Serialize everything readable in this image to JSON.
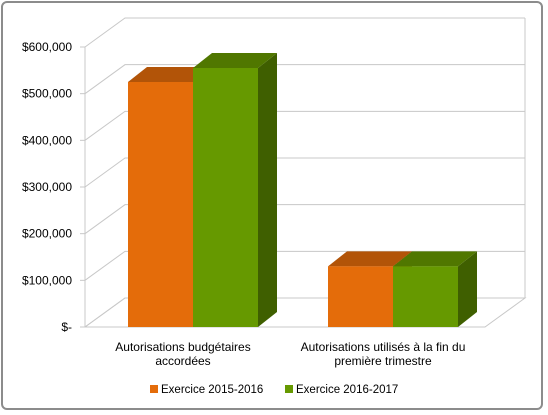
{
  "chart_data": {
    "type": "bar",
    "bar_style": "3d-clustered-column",
    "categories": [
      [
        "Autorisations budgétaires",
        "accordées"
      ],
      [
        "Autorisations utilisés à la fin du",
        "première trimestre"
      ]
    ],
    "series": [
      {
        "name": "Exercice 2015-2016",
        "values": [
          525000,
          130000
        ],
        "color": "#e46c0a"
      },
      {
        "name": "Exercice 2016-2017",
        "values": [
          555000,
          130000
        ],
        "color": "#669900"
      }
    ],
    "ylim": [
      0,
      600000
    ],
    "yticks": [
      0,
      100000,
      200000,
      300000,
      400000,
      500000,
      600000
    ],
    "ytick_labels": [
      "$-",
      "$100,000",
      "$200,000",
      "$300,000",
      "$400,000",
      "$500,000",
      "$600,000"
    ],
    "grid": true,
    "legend_position": "bottom",
    "title": "",
    "xlabel": "",
    "ylabel": ""
  }
}
